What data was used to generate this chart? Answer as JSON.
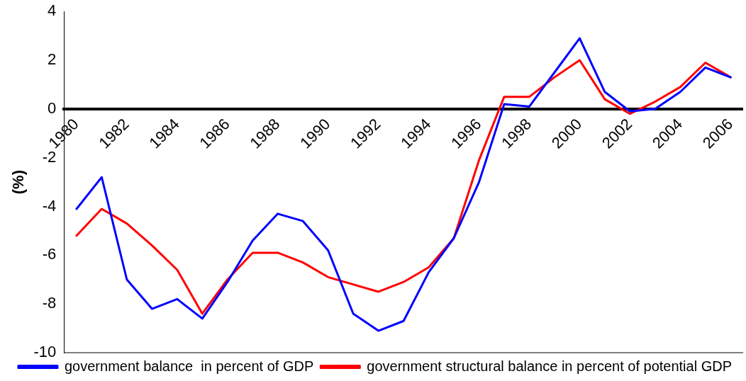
{
  "chart_data": {
    "type": "line",
    "ylabel": "(%)",
    "categories": [
      "1980",
      null,
      "1982",
      null,
      "1984",
      null,
      "1986",
      null,
      "1988",
      null,
      "1990",
      null,
      "1992",
      null,
      "1994",
      null,
      "1996",
      null,
      "1998",
      null,
      "2000",
      null,
      "2002",
      null,
      "2004",
      null,
      "2006"
    ],
    "series": [
      {
        "name": "government balance  in percent of GDP",
        "color": "#0000ff",
        "values": [
          -4.1,
          -2.8,
          -7.0,
          -8.2,
          -7.8,
          -8.6,
          -7.1,
          -5.4,
          -4.3,
          -4.6,
          -5.8,
          -8.4,
          -9.1,
          -8.7,
          -6.7,
          -5.3,
          -3.0,
          0.2,
          0.1,
          1.5,
          2.9,
          0.7,
          -0.1,
          0.0,
          0.7,
          1.7,
          1.3
        ]
      },
      {
        "name": "government structural balance in percent of potential GDP",
        "color": "#ff0000",
        "values": [
          -5.2,
          -4.1,
          -4.7,
          -5.6,
          -6.6,
          -8.4,
          -7.0,
          -5.9,
          -5.9,
          -6.3,
          -6.9,
          -7.2,
          -7.5,
          -7.1,
          -6.5,
          -5.3,
          -2.1,
          0.5,
          0.5,
          1.3,
          2.0,
          0.4,
          -0.2,
          0.3,
          0.9,
          1.9,
          1.3
        ]
      }
    ],
    "ylim": [
      -10,
      4
    ],
    "yticks": [
      -10,
      -8,
      -6,
      -4,
      -2,
      0,
      2,
      4
    ],
    "grid": false,
    "legend": "bottom",
    "marker": "none",
    "line_style": "solid"
  }
}
